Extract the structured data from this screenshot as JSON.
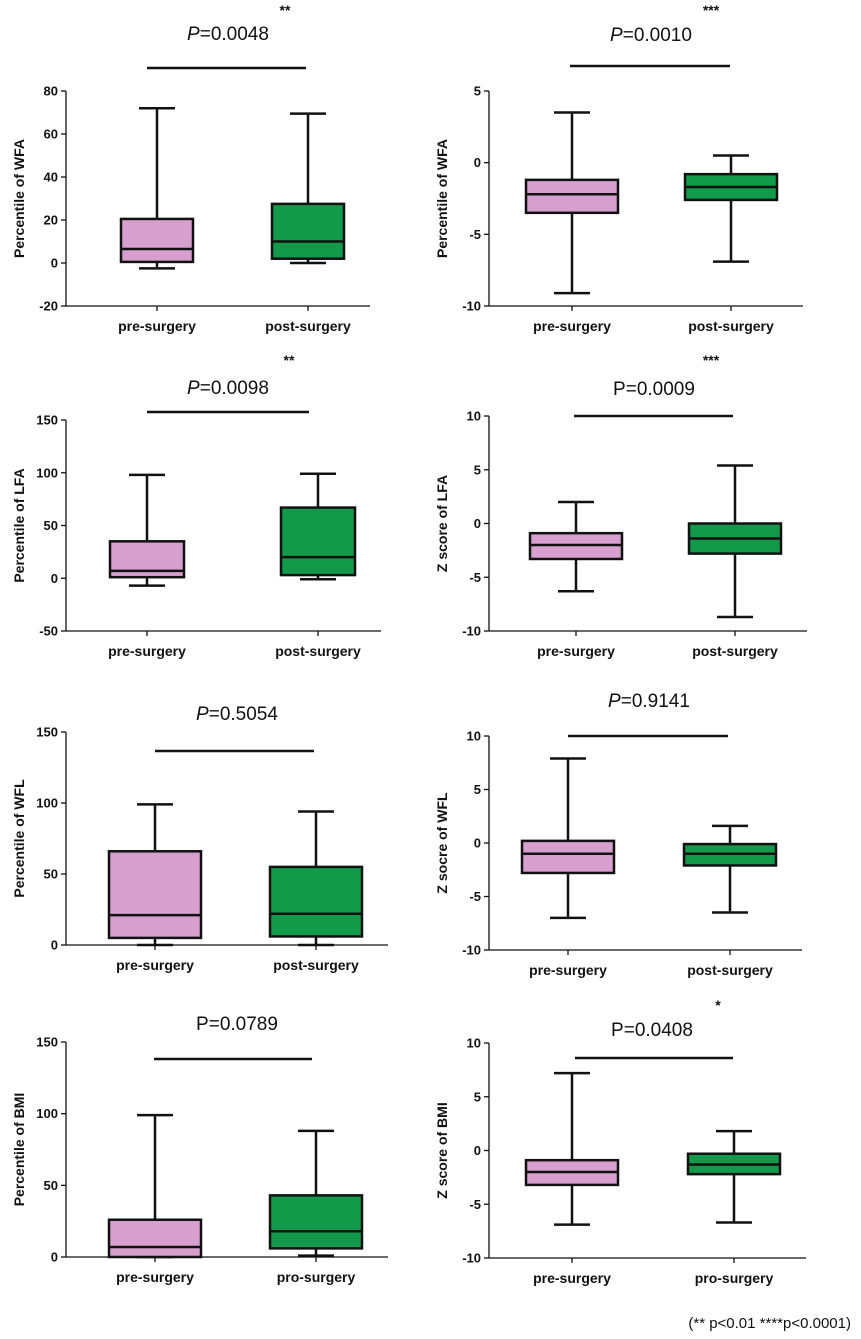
{
  "colors": {
    "pre": "#d79fce",
    "post": "#12994a",
    "line": "#111111"
  },
  "footnote": "(** p<0.01 ****p<0.0001)",
  "chart_data": [
    {
      "type": "box",
      "id": "wfa-percentile",
      "ylabel": "Percentile of WFA",
      "ylim": [
        -20,
        80
      ],
      "yticks": [
        -20,
        0,
        20,
        40,
        60,
        80
      ],
      "p_prefix": "P",
      "p_value": "=0.0048",
      "p_italic": true,
      "stars": "**",
      "categories": [
        "pre-surgery",
        "post-surgery"
      ],
      "boxes": [
        {
          "min": -2.5,
          "q1": 0.5,
          "median": 6.5,
          "q3": 20.5,
          "max": 72
        },
        {
          "min": 0,
          "q1": 2,
          "median": 10,
          "q3": 27.5,
          "max": 69.5
        }
      ]
    },
    {
      "type": "box",
      "id": "wfa-zscore",
      "ylabel": "Percentile of WFA",
      "ylim": [
        -10,
        5
      ],
      "yticks": [
        -10,
        -5,
        0,
        5
      ],
      "p_prefix": "P",
      "p_value": "=0.0010",
      "p_italic": true,
      "stars": "***",
      "categories": [
        "pre-surgery",
        "post-surgery"
      ],
      "boxes": [
        {
          "min": -9.1,
          "q1": -3.5,
          "median": -2.2,
          "q3": -1.2,
          "max": 3.5
        },
        {
          "min": -6.9,
          "q1": -2.6,
          "median": -1.7,
          "q3": -0.8,
          "max": 0.5
        }
      ]
    },
    {
      "type": "box",
      "id": "lfa-percentile",
      "ylabel": "Percentile of LFA",
      "ylim": [
        -50,
        150
      ],
      "yticks": [
        -50,
        0,
        50,
        100,
        150
      ],
      "p_prefix": "P",
      "p_value": "=0.0098",
      "p_italic": true,
      "stars": "**",
      "categories": [
        "pre-surgery",
        "post-surgery"
      ],
      "boxes": [
        {
          "min": -7,
          "q1": 1,
          "median": 7,
          "q3": 35,
          "max": 98
        },
        {
          "min": -1,
          "q1": 3,
          "median": 20,
          "q3": 67,
          "max": 99
        }
      ]
    },
    {
      "type": "box",
      "id": "lfa-zscore",
      "ylabel": "Z score of LFA",
      "ylim": [
        -10,
        10
      ],
      "yticks": [
        -10,
        -5,
        0,
        5,
        10
      ],
      "p_prefix": "",
      "p_value": "P=0.0009",
      "p_italic": false,
      "stars": "***",
      "categories": [
        "pre-surgery",
        "post-surgery"
      ],
      "boxes": [
        {
          "min": -6.3,
          "q1": -3.3,
          "median": -2,
          "q3": -0.9,
          "max": 2
        },
        {
          "min": -8.7,
          "q1": -2.8,
          "median": -1.4,
          "q3": 0,
          "max": 5.4
        }
      ]
    },
    {
      "type": "box",
      "id": "wfl-percentile",
      "ylabel": "Percentile of WFL",
      "ylim": [
        0,
        150
      ],
      "yticks": [
        0,
        50,
        100,
        150
      ],
      "p_prefix": "P",
      "p_value": "=0.5054",
      "p_italic": true,
      "stars": "",
      "categories": [
        "pre-surgery",
        "post-surgery"
      ],
      "boxes": [
        {
          "min": 0,
          "q1": 5,
          "median": 21,
          "q3": 66,
          "max": 99
        },
        {
          "min": 0,
          "q1": 6,
          "median": 22,
          "q3": 55,
          "max": 94
        }
      ]
    },
    {
      "type": "box",
      "id": "wfl-zscore",
      "ylabel": "Z socre of WFL",
      "ylim": [
        -10,
        10
      ],
      "yticks": [
        -10,
        -5,
        0,
        5,
        10
      ],
      "p_prefix": "P",
      "p_value": "=0.9141",
      "p_italic": true,
      "stars": "",
      "categories": [
        "pre-surgery",
        "post-surgery"
      ],
      "boxes": [
        {
          "min": -7,
          "q1": -2.8,
          "median": -1,
          "q3": 0.2,
          "max": 7.9
        },
        {
          "min": -6.5,
          "q1": -2.1,
          "median": -1,
          "q3": -0.1,
          "max": 1.6
        }
      ]
    },
    {
      "type": "box",
      "id": "bmi-percentile",
      "ylabel": "Percentile of BMI",
      "ylim": [
        0,
        150
      ],
      "yticks": [
        0,
        50,
        100,
        150
      ],
      "p_prefix": "",
      "p_value": "P=0.0789",
      "p_italic": false,
      "stars": "",
      "categories": [
        "pre-surgery",
        "pro-surgery"
      ],
      "boxes": [
        {
          "min": 0,
          "q1": 0,
          "median": 7,
          "q3": 26,
          "max": 99
        },
        {
          "min": 1,
          "q1": 6,
          "median": 18,
          "q3": 43,
          "max": 88
        }
      ]
    },
    {
      "type": "box",
      "id": "bmi-zscore",
      "ylabel": "Z score of BMI",
      "ylim": [
        -10,
        10
      ],
      "yticks": [
        -10,
        -5,
        0,
        5,
        10
      ],
      "p_prefix": "",
      "p_value": "P=0.0408",
      "p_italic": false,
      "stars": "*",
      "categories": [
        "pre-surgery",
        "pro-surgery"
      ],
      "boxes": [
        {
          "min": -6.9,
          "q1": -3.2,
          "median": -2,
          "q3": -0.9,
          "max": 7.2
        },
        {
          "min": -6.7,
          "q1": -2.2,
          "median": -1.3,
          "q3": -0.3,
          "max": 1.8
        }
      ]
    }
  ]
}
